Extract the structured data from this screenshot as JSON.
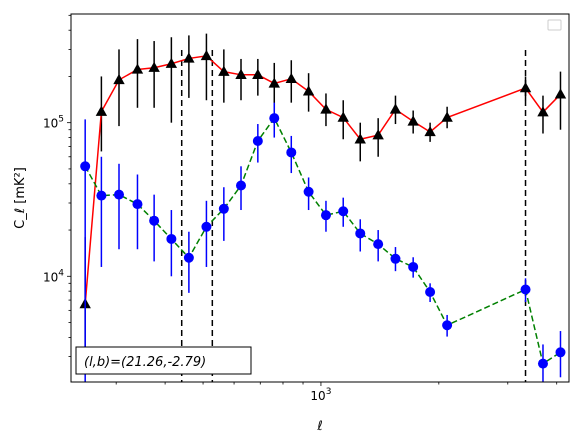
{
  "chart_data": {
    "type": "line",
    "title": "",
    "xscale": "log",
    "yscale": "log",
    "xlabel": "ℓ",
    "ylabel": "C_ℓ [mK²]",
    "xlim": [
      230,
      4300
    ],
    "ylim": [
      2050,
      510000
    ],
    "x_tick_labels": [
      {
        "value": 1000,
        "base": "10",
        "exp": "3"
      }
    ],
    "y_tick_labels": [
      {
        "value": 10000,
        "base": "10",
        "exp": "4"
      },
      {
        "value": 100000,
        "base": "10",
        "exp": "5"
      }
    ],
    "grid": false,
    "legend": {
      "placement": "top-right",
      "entries": []
    },
    "annotation": "(l,b)=(21.26,-2.79)",
    "vlines": [
      441,
      528,
      3330
    ],
    "series": [
      {
        "marker": "triangle",
        "marker_color": "#000000",
        "line_color": "#ff0000",
        "line_style": "solid",
        "points": [
          {
            "x": 250,
            "y": 6600,
            "lo": 2300,
            "hi": 18000
          },
          {
            "x": 275,
            "y": 118000,
            "lo": 65000,
            "hi": 200000
          },
          {
            "x": 305,
            "y": 190000,
            "lo": 95000,
            "hi": 300000
          },
          {
            "x": 340,
            "y": 222000,
            "lo": 125000,
            "hi": 350000
          },
          {
            "x": 375,
            "y": 228000,
            "lo": 125000,
            "hi": 340000
          },
          {
            "x": 415,
            "y": 242000,
            "lo": 100000,
            "hi": 360000
          },
          {
            "x": 460,
            "y": 262000,
            "lo": 145000,
            "hi": 370000
          },
          {
            "x": 510,
            "y": 272000,
            "lo": 140000,
            "hi": 380000
          },
          {
            "x": 565,
            "y": 215000,
            "lo": 135000,
            "hi": 300000
          },
          {
            "x": 625,
            "y": 205000,
            "lo": 140000,
            "hi": 260000
          },
          {
            "x": 690,
            "y": 205000,
            "lo": 150000,
            "hi": 260000
          },
          {
            "x": 760,
            "y": 180000,
            "lo": 120000,
            "hi": 245000
          },
          {
            "x": 840,
            "y": 193000,
            "lo": 135000,
            "hi": 255000
          },
          {
            "x": 930,
            "y": 160000,
            "lo": 118000,
            "hi": 210000
          },
          {
            "x": 1030,
            "y": 122000,
            "lo": 95000,
            "hi": 155000
          },
          {
            "x": 1140,
            "y": 108000,
            "lo": 78000,
            "hi": 140000
          },
          {
            "x": 1260,
            "y": 78000,
            "lo": 56000,
            "hi": 100000
          },
          {
            "x": 1400,
            "y": 83000,
            "lo": 60000,
            "hi": 107000
          },
          {
            "x": 1550,
            "y": 122000,
            "lo": 98000,
            "hi": 150000
          },
          {
            "x": 1720,
            "y": 102000,
            "lo": 85000,
            "hi": 120000
          },
          {
            "x": 1900,
            "y": 87000,
            "lo": 75000,
            "hi": 100000
          },
          {
            "x": 2100,
            "y": 108000,
            "lo": 92000,
            "hi": 127000
          },
          {
            "x": 3330,
            "y": 168000,
            "lo": 140000,
            "hi": 200000
          },
          {
            "x": 3690,
            "y": 117000,
            "lo": 85000,
            "hi": 150000
          },
          {
            "x": 4090,
            "y": 153000,
            "lo": 90000,
            "hi": 215000
          }
        ]
      },
      {
        "marker": "circle",
        "marker_color": "#0000ff",
        "line_color": "#008000",
        "line_style": "dashed",
        "points": [
          {
            "x": 250,
            "y": 52000,
            "lo": 2050,
            "hi": 105000
          },
          {
            "x": 275,
            "y": 33500,
            "lo": 11500,
            "hi": 60000
          },
          {
            "x": 305,
            "y": 34000,
            "lo": 15000,
            "hi": 54000
          },
          {
            "x": 340,
            "y": 29500,
            "lo": 15000,
            "hi": 46000
          },
          {
            "x": 375,
            "y": 23000,
            "lo": 12500,
            "hi": 34000
          },
          {
            "x": 415,
            "y": 17500,
            "lo": 10000,
            "hi": 27000
          },
          {
            "x": 460,
            "y": 13200,
            "lo": 7800,
            "hi": 19500
          },
          {
            "x": 510,
            "y": 21000,
            "lo": 11500,
            "hi": 31000
          },
          {
            "x": 565,
            "y": 27500,
            "lo": 17000,
            "hi": 38000
          },
          {
            "x": 625,
            "y": 39000,
            "lo": 27000,
            "hi": 52000
          },
          {
            "x": 690,
            "y": 76000,
            "lo": 55000,
            "hi": 98000
          },
          {
            "x": 760,
            "y": 107000,
            "lo": 80000,
            "hi": 135000
          },
          {
            "x": 840,
            "y": 64000,
            "lo": 47000,
            "hi": 82000
          },
          {
            "x": 930,
            "y": 35500,
            "lo": 27000,
            "hi": 44000
          },
          {
            "x": 1030,
            "y": 25000,
            "lo": 19500,
            "hi": 31000
          },
          {
            "x": 1140,
            "y": 26500,
            "lo": 21000,
            "hi": 32500
          },
          {
            "x": 1260,
            "y": 19000,
            "lo": 14500,
            "hi": 23500
          },
          {
            "x": 1400,
            "y": 16200,
            "lo": 12500,
            "hi": 20000
          },
          {
            "x": 1550,
            "y": 13000,
            "lo": 10800,
            "hi": 15500
          },
          {
            "x": 1720,
            "y": 11500,
            "lo": 9800,
            "hi": 13300
          },
          {
            "x": 1900,
            "y": 7900,
            "lo": 6800,
            "hi": 9000
          },
          {
            "x": 2100,
            "y": 4800,
            "lo": 4050,
            "hi": 5600
          },
          {
            "x": 3330,
            "y": 8200,
            "lo": 6800,
            "hi": 9700
          },
          {
            "x": 3690,
            "y": 2700,
            "lo": 2050,
            "hi": 3600
          },
          {
            "x": 4090,
            "y": 3200,
            "lo": 2200,
            "hi": 4400
          }
        ]
      }
    ]
  }
}
